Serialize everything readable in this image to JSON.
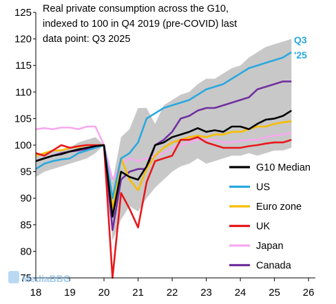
{
  "chart_data": {
    "type": "line",
    "title_lines": [
      "Real private consumption across the G10,",
      "indexed to 100 in Q4 2019 (pre-COVID) last",
      "data point: Q3 2025"
    ],
    "xlabel": "",
    "ylabel": "",
    "x_tick_labels": [
      "18",
      "19",
      "20",
      "21",
      "22",
      "23",
      "24",
      "25",
      "26"
    ],
    "x_tick_values": [
      2018,
      2019,
      2020,
      2021,
      2022,
      2023,
      2024,
      2025,
      2026
    ],
    "y_ticks": [
      75,
      80,
      85,
      90,
      95,
      100,
      105,
      110,
      115,
      120,
      125
    ],
    "xlim": [
      2018,
      2026.2
    ],
    "ylim": [
      75,
      125
    ],
    "grid": false,
    "legend_position": "bottom-right",
    "x": [
      2018.0,
      2018.25,
      2018.5,
      2018.75,
      2019.0,
      2019.25,
      2019.5,
      2019.75,
      2020.0,
      2020.25,
      2020.5,
      2020.75,
      2021.0,
      2021.25,
      2021.5,
      2021.75,
      2022.0,
      2022.25,
      2022.5,
      2022.75,
      2023.0,
      2023.25,
      2023.5,
      2023.75,
      2024.0,
      2024.25,
      2024.5,
      2024.75,
      2025.0,
      2025.25,
      2025.5
    ],
    "range_band": {
      "color": "#c8c8c8",
      "upper": [
        98.0,
        98.5,
        99.0,
        99.0,
        99.5,
        100.5,
        101.0,
        101.5,
        100.0,
        93.0,
        101.5,
        103.0,
        107.0,
        107.0,
        104.0,
        107.5,
        108.5,
        109.5,
        110.0,
        111.5,
        112.5,
        112.5,
        113.5,
        114.5,
        115.0,
        116.5,
        117.5,
        118.5,
        119.0,
        119.5,
        120.0
      ],
      "lower": [
        94.0,
        95.0,
        95.5,
        96.0,
        96.5,
        97.0,
        97.5,
        98.5,
        100.0,
        82.0,
        86.0,
        88.5,
        87.5,
        90.0,
        92.0,
        93.5,
        95.0,
        96.0,
        96.5,
        97.5,
        96.5,
        97.0,
        97.5,
        98.0,
        98.0,
        98.5,
        98.0,
        98.5,
        99.0,
        99.0,
        99.5
      ]
    },
    "series": [
      {
        "name": "G10 Median",
        "color": "#000000",
        "values": [
          97.0,
          97.5,
          98.0,
          98.3,
          98.8,
          99.2,
          99.5,
          99.8,
          100.0,
          86.5,
          95.0,
          94.0,
          93.5,
          96.0,
          100.0,
          100.5,
          101.5,
          102.0,
          102.5,
          103.2,
          102.5,
          102.8,
          102.5,
          103.5,
          103.5,
          103.0,
          104.0,
          104.8,
          105.0,
          105.5,
          106.5
        ]
      },
      {
        "name": "US",
        "color": "#29a8df",
        "values": [
          95.5,
          96.5,
          97.0,
          97.3,
          97.5,
          98.5,
          99.0,
          99.5,
          100.0,
          90.0,
          97.5,
          98.5,
          100.5,
          105.0,
          106.0,
          107.0,
          107.5,
          108.0,
          108.5,
          109.5,
          110.5,
          111.0,
          111.5,
          112.5,
          113.5,
          114.5,
          115.0,
          115.5,
          116.0,
          116.5,
          117.5
        ]
      },
      {
        "name": "Euro zone",
        "color": "#f7bd00",
        "values": [
          98.0,
          98.5,
          99.0,
          99.0,
          99.5,
          99.7,
          100.0,
          100.0,
          100.0,
          88.0,
          97.5,
          93.5,
          91.5,
          95.5,
          98.0,
          99.5,
          100.5,
          101.0,
          101.5,
          101.8,
          101.5,
          102.0,
          102.0,
          102.5,
          102.5,
          103.0,
          103.5,
          103.5,
          104.0,
          104.3,
          104.5
        ]
      },
      {
        "name": "UK",
        "color": "#e8171b",
        "values": [
          98.5,
          98.0,
          99.0,
          100.0,
          99.5,
          99.8,
          100.0,
          100.0,
          100.0,
          75.0,
          91.0,
          88.0,
          84.5,
          93.0,
          97.0,
          97.5,
          98.0,
          101.0,
          101.0,
          101.5,
          100.5,
          100.0,
          99.5,
          99.5,
          99.5,
          99.8,
          100.0,
          100.3,
          100.5,
          100.5,
          101.0
        ]
      },
      {
        "name": "Japan",
        "color": "#f7a8f0",
        "values": [
          103.0,
          103.2,
          103.0,
          103.3,
          103.3,
          103.0,
          103.5,
          103.5,
          100.0,
          93.5,
          96.5,
          97.5,
          97.0,
          97.5,
          98.0,
          98.5,
          99.5,
          100.0,
          100.5,
          101.0,
          101.0,
          101.0,
          100.5,
          100.5,
          100.8,
          101.0,
          101.0,
          101.5,
          101.8,
          102.0,
          102.3
        ]
      },
      {
        "name": "Canada",
        "color": "#7030a0",
        "values": [
          97.0,
          97.5,
          98.0,
          98.5,
          98.8,
          99.0,
          99.3,
          99.8,
          100.0,
          84.0,
          93.5,
          95.0,
          95.5,
          95.5,
          100.0,
          101.0,
          102.5,
          105.0,
          105.5,
          106.5,
          107.0,
          107.0,
          107.5,
          108.0,
          108.5,
          109.0,
          110.5,
          111.0,
          111.5,
          112.0,
          112.0
        ]
      }
    ],
    "annotation": {
      "text_lines": [
        "Q3",
        "'25"
      ],
      "color": "#29a8df"
    }
  },
  "watermark": {
    "text": "MediaBBG",
    "color": "#7fb7e6"
  }
}
